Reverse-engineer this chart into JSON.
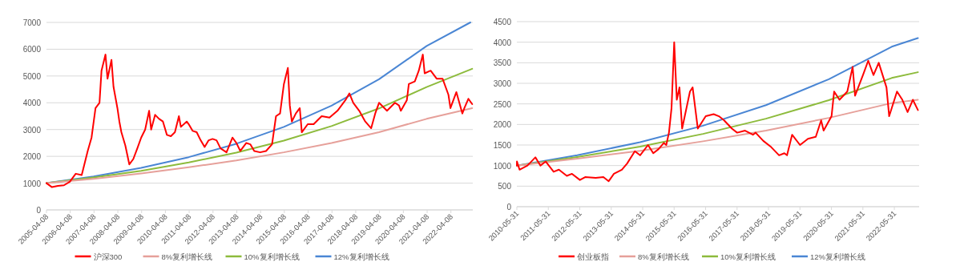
{
  "chart_data": [
    {
      "type": "line",
      "grid": "y",
      "legend": "bottom",
      "xlim": [
        "2005-04-08",
        "2023-03-10"
      ],
      "ylim": [
        0,
        7000
      ],
      "yticks": [
        0,
        1000,
        2000,
        3000,
        4000,
        5000,
        6000,
        7000
      ],
      "xticks": [
        "2005-04-08",
        "2006-04-08",
        "2007-04-08",
        "2008-04-08",
        "2009-04-08",
        "2010-04-08",
        "2011-04-08",
        "2012-04-08",
        "2013-04-08",
        "2014-04-08",
        "2015-04-08",
        "2016-04-08",
        "2017-04-08",
        "2018-04-08",
        "2019-04-08",
        "2020-04-08",
        "2021-04-08",
        "2022-04-08"
      ],
      "series": [
        {
          "name": "沪深300",
          "color": "#ff0000",
          "x": [
            "2005-04-08",
            "2005-07",
            "2005-10",
            "2006-01",
            "2006-04",
            "2006-07",
            "2006-10",
            "2007-01",
            "2007-03",
            "2007-05",
            "2007-07",
            "2007-08",
            "2007-10",
            "2007-11",
            "2008-01",
            "2008-02",
            "2008-04",
            "2008-05",
            "2008-06",
            "2008-08",
            "2008-10",
            "2008-12",
            "2009-02",
            "2009-04",
            "2009-06",
            "2009-08",
            "2009-09",
            "2009-11",
            "2010-01",
            "2010-03",
            "2010-05",
            "2010-07",
            "2010-09",
            "2010-11",
            "2010-12",
            "2011-03",
            "2011-04",
            "2011-06",
            "2011-08",
            "2011-10",
            "2011-12",
            "2012-02",
            "2012-04",
            "2012-06",
            "2012-08",
            "2012-11",
            "2013-02",
            "2013-04",
            "2013-06",
            "2013-09",
            "2013-11",
            "2014-01",
            "2014-04",
            "2014-07",
            "2014-10",
            "2014-12",
            "2015-02",
            "2015-04",
            "2015-06",
            "2015-07",
            "2015-08",
            "2015-10",
            "2015-12",
            "2016-01",
            "2016-04",
            "2016-07",
            "2016-11",
            "2017-03",
            "2017-07",
            "2017-11",
            "2018-01",
            "2018-03",
            "2018-06",
            "2018-09",
            "2018-12",
            "2019-02",
            "2019-04",
            "2019-08",
            "2019-12",
            "2020-02",
            "2020-03",
            "2020-06",
            "2020-07",
            "2020-10",
            "2020-12",
            "2021-02",
            "2021-03",
            "2021-06",
            "2021-09",
            "2021-12",
            "2022-03",
            "2022-04",
            "2022-07",
            "2022-10",
            "2022-11",
            "2023-01",
            "2023-03"
          ],
          "values": [
            1000,
            850,
            900,
            920,
            1050,
            1350,
            1300,
            2200,
            2700,
            3800,
            4000,
            5200,
            5800,
            4900,
            5600,
            4600,
            3800,
            3300,
            2900,
            2400,
            1700,
            1900,
            2300,
            2700,
            3000,
            3700,
            3000,
            3550,
            3400,
            3300,
            2800,
            2750,
            2900,
            3500,
            3100,
            3300,
            3200,
            2950,
            2900,
            2600,
            2350,
            2600,
            2650,
            2600,
            2300,
            2150,
            2700,
            2500,
            2200,
            2500,
            2450,
            2200,
            2150,
            2200,
            2450,
            3500,
            3600,
            4700,
            5300,
            3900,
            3300,
            3600,
            3800,
            2900,
            3200,
            3200,
            3500,
            3450,
            3700,
            4100,
            4350,
            4000,
            3700,
            3300,
            3050,
            3600,
            4000,
            3700,
            4000,
            3900,
            3700,
            4100,
            4700,
            4800,
            5200,
            5800,
            5100,
            5200,
            4900,
            4900,
            4300,
            3800,
            4400,
            3600,
            3800,
            4150,
            3950
          ]
        },
        {
          "name": "8%复利增长线",
          "color": "#e6a09a",
          "x": [
            "2005-04-08",
            "2007-04",
            "2009-04",
            "2011-04",
            "2013-04",
            "2015-04",
            "2017-04",
            "2019-04",
            "2021-04",
            "2023-03"
          ],
          "values": [
            1000,
            1160,
            1360,
            1590,
            1850,
            2150,
            2500,
            2900,
            3400,
            3800
          ]
        },
        {
          "name": "10%复利增长线",
          "color": "#8dbb3c",
          "x": [
            "2005-04-08",
            "2007-04",
            "2009-04",
            "2011-04",
            "2013-04",
            "2015-04",
            "2017-04",
            "2019-04",
            "2021-04",
            "2023-03"
          ],
          "values": [
            1000,
            1210,
            1460,
            1770,
            2140,
            2590,
            3130,
            3790,
            4590,
            5270
          ]
        },
        {
          "name": "12%复利增长线",
          "color": "#4a86d4",
          "x": [
            "2005-04-08",
            "2007-04",
            "2009-04",
            "2011-04",
            "2013-04",
            "2015-04",
            "2017-04",
            "2019-04",
            "2021-04",
            "2023-02"
          ],
          "values": [
            1000,
            1250,
            1570,
            1970,
            2470,
            3100,
            3890,
            4880,
            6120,
            7000
          ]
        }
      ]
    },
    {
      "type": "line",
      "grid": "y",
      "legend": "bottom",
      "xlim": [
        "2010-05-31",
        "2023-03-15"
      ],
      "ylim": [
        0,
        4500
      ],
      "yticks": [
        0,
        500,
        1000,
        1500,
        2000,
        2500,
        3000,
        3500,
        4000,
        4500
      ],
      "xticks": [
        "2010-05-31",
        "2011-05-31",
        "2012-05-31",
        "2013-05-31",
        "2014-05-31",
        "2015-05-31",
        "2016-05-31",
        "2017-05-31",
        "2018-05-31",
        "2019-05-31",
        "2020-05-31",
        "2021-05-31",
        "2022-05-31"
      ],
      "series": [
        {
          "name": "创业板指",
          "color": "#ff0000",
          "x": [
            "2010-05-31",
            "2010-06",
            "2010-07",
            "2010-10",
            "2011-01",
            "2011-03",
            "2011-05",
            "2011-08",
            "2011-10",
            "2012-01",
            "2012-03",
            "2012-06",
            "2012-08",
            "2012-12",
            "2013-03",
            "2013-05",
            "2013-07",
            "2013-10",
            "2013-12",
            "2014-03",
            "2014-05",
            "2014-08",
            "2014-10",
            "2014-12",
            "2015-02",
            "2015-03",
            "2015-04",
            "2015-05",
            "2015-06",
            "2015-07",
            "2015-08",
            "2015-09",
            "2015-12",
            "2016-01",
            "2016-03",
            "2016-06",
            "2016-09",
            "2016-11",
            "2017-01",
            "2017-04",
            "2017-06",
            "2017-09",
            "2017-12",
            "2018-01",
            "2018-04",
            "2018-07",
            "2018-10",
            "2018-12",
            "2019-01",
            "2019-03",
            "2019-06",
            "2019-09",
            "2019-12",
            "2020-02",
            "2020-03",
            "2020-06",
            "2020-07",
            "2020-09",
            "2020-12",
            "2021-02",
            "2021-03",
            "2021-06",
            "2021-08",
            "2021-10",
            "2021-12",
            "2022-03",
            "2022-04",
            "2022-07",
            "2022-09",
            "2022-11",
            "2023-01",
            "2023-03"
          ],
          "values": [
            1000,
            1100,
            900,
            1000,
            1200,
            1000,
            1100,
            850,
            900,
            750,
            800,
            650,
            720,
            700,
            720,
            620,
            800,
            900,
            1050,
            1350,
            1250,
            1500,
            1300,
            1400,
            1550,
            1500,
            1800,
            2400,
            4000,
            2600,
            2900,
            1900,
            2800,
            2900,
            1900,
            2200,
            2250,
            2200,
            2100,
            1900,
            1800,
            1850,
            1750,
            1800,
            1600,
            1450,
            1250,
            1300,
            1250,
            1750,
            1500,
            1650,
            1700,
            2100,
            1850,
            2200,
            2800,
            2600,
            2800,
            3400,
            2700,
            3200,
            3550,
            3200,
            3500,
            2900,
            2200,
            2800,
            2600,
            2300,
            2600,
            2350
          ]
        },
        {
          "name": "8%复利增长线",
          "color": "#e6a09a",
          "x": [
            "2010-05-31",
            "2012-05",
            "2014-05",
            "2016-05",
            "2018-05",
            "2020-05",
            "2022-05",
            "2023-03"
          ],
          "values": [
            1000,
            1170,
            1360,
            1590,
            1850,
            2160,
            2520,
            2600
          ]
        },
        {
          "name": "10%复利增长线",
          "color": "#8dbb3c",
          "x": [
            "2010-05-31",
            "2012-05",
            "2014-05",
            "2016-05",
            "2018-05",
            "2020-05",
            "2022-05",
            "2023-03"
          ],
          "values": [
            1000,
            1210,
            1460,
            1770,
            2140,
            2590,
            3130,
            3270
          ]
        },
        {
          "name": "12%复利增长线",
          "color": "#4a86d4",
          "x": [
            "2010-05-31",
            "2012-05",
            "2014-05",
            "2016-05",
            "2018-05",
            "2020-05",
            "2022-05",
            "2023-03"
          ],
          "values": [
            1000,
            1250,
            1570,
            1970,
            2470,
            3100,
            3890,
            4100
          ]
        }
      ]
    }
  ]
}
